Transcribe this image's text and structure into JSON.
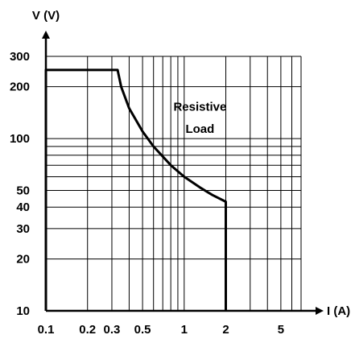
{
  "chart_data": {
    "type": "line",
    "x_scale": "log",
    "y_scale": "log",
    "xlabel": "I (A)",
    "ylabel": "V (V)",
    "xlim": [
      0.1,
      7
    ],
    "ylim": [
      10,
      300
    ],
    "grid": true,
    "x_ticks": [
      0.1,
      0.2,
      0.3,
      0.5,
      1,
      2,
      5
    ],
    "x_tick_labels": [
      "0.1",
      "0.2",
      "0.3",
      "0.5",
      "1",
      "2",
      "5"
    ],
    "y_ticks": [
      10,
      20,
      30,
      40,
      50,
      100,
      200,
      300
    ],
    "y_tick_labels": [
      "10",
      "20",
      "30",
      "40",
      "50",
      "100",
      "200",
      "300"
    ],
    "x_grid": [
      0.1,
      0.2,
      0.3,
      0.4,
      0.5,
      0.6,
      0.7,
      0.8,
      0.9,
      1,
      2,
      3,
      4,
      5,
      6,
      7
    ],
    "y_grid": [
      10,
      20,
      30,
      40,
      50,
      60,
      70,
      80,
      90,
      100,
      200,
      300
    ],
    "series": [
      {
        "x": [
          0.1,
          0.1,
          0.33,
          0.35,
          0.4,
          0.5,
          0.6,
          0.8,
          1.0,
          1.3,
          1.6,
          2.0,
          2.0
        ],
        "y": [
          10,
          250,
          250,
          200,
          150,
          110,
          90,
          70,
          60,
          52,
          47,
          43,
          10
        ]
      }
    ],
    "annotations": [
      {
        "text": "Resistive",
        "x": 1.3,
        "y": 145
      },
      {
        "text": "Load",
        "x": 1.3,
        "y": 108
      }
    ]
  }
}
